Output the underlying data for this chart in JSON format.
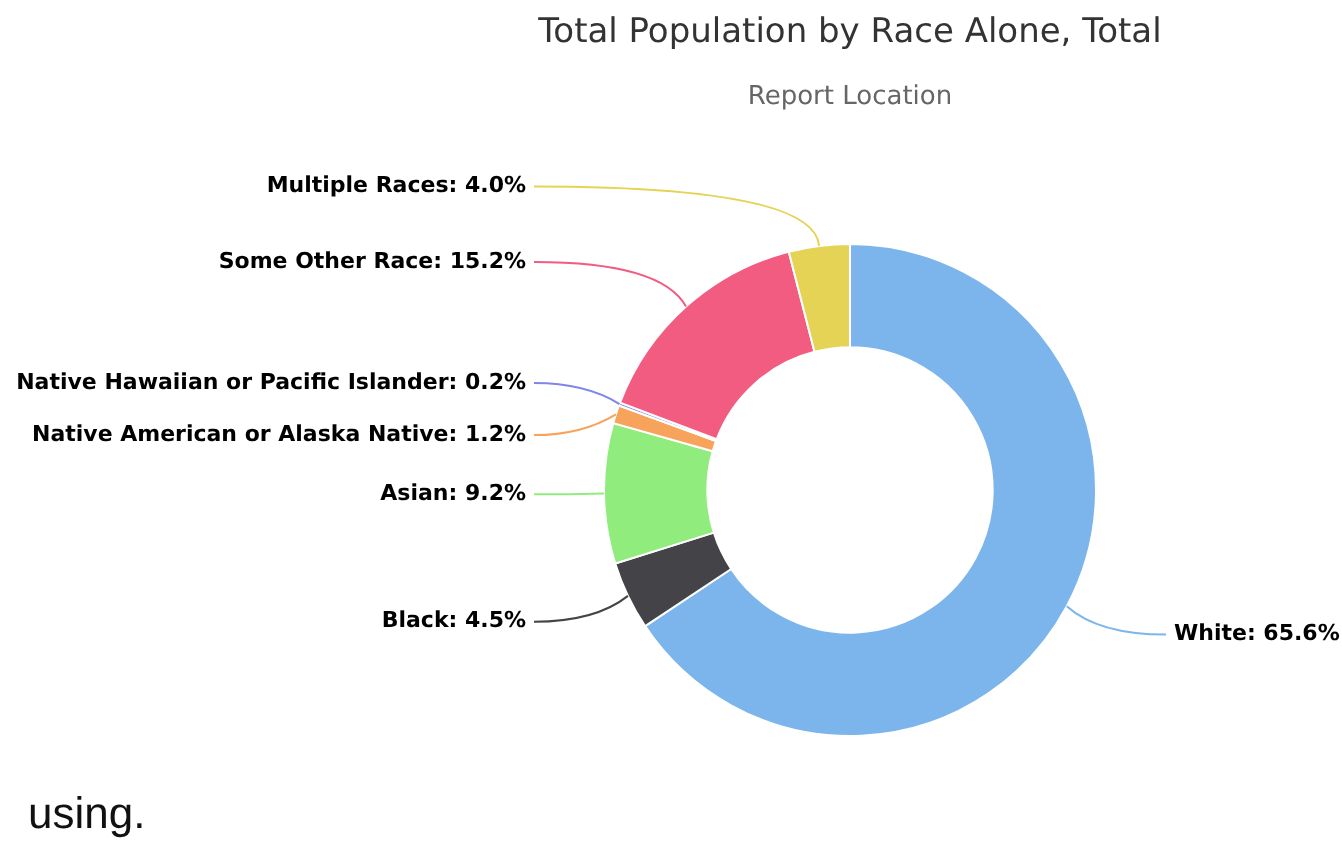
{
  "chart_data": {
    "type": "donut",
    "title": "Total Population by Race Alone, Total",
    "subtitle": "Report Location",
    "categories": [
      "White",
      "Black",
      "Asian",
      "Native American or Alaska Native",
      "Native Hawaiian or Pacific Islander",
      "Some Other Race",
      "Multiple Races"
    ],
    "values": [
      65.6,
      4.5,
      9.2,
      1.2,
      0.2,
      15.2,
      4.0
    ],
    "colors": [
      "#7cb5ec",
      "#434348",
      "#90ed7d",
      "#f7a35c",
      "#8085e9",
      "#f15c80",
      "#e4d354"
    ],
    "data_labels": true,
    "value_labels": [
      "65.6%",
      "4.5%",
      "9.2%",
      "1.2%",
      "0.2%",
      "15.2%",
      "4.0%"
    ],
    "annotations": [
      "using."
    ]
  }
}
